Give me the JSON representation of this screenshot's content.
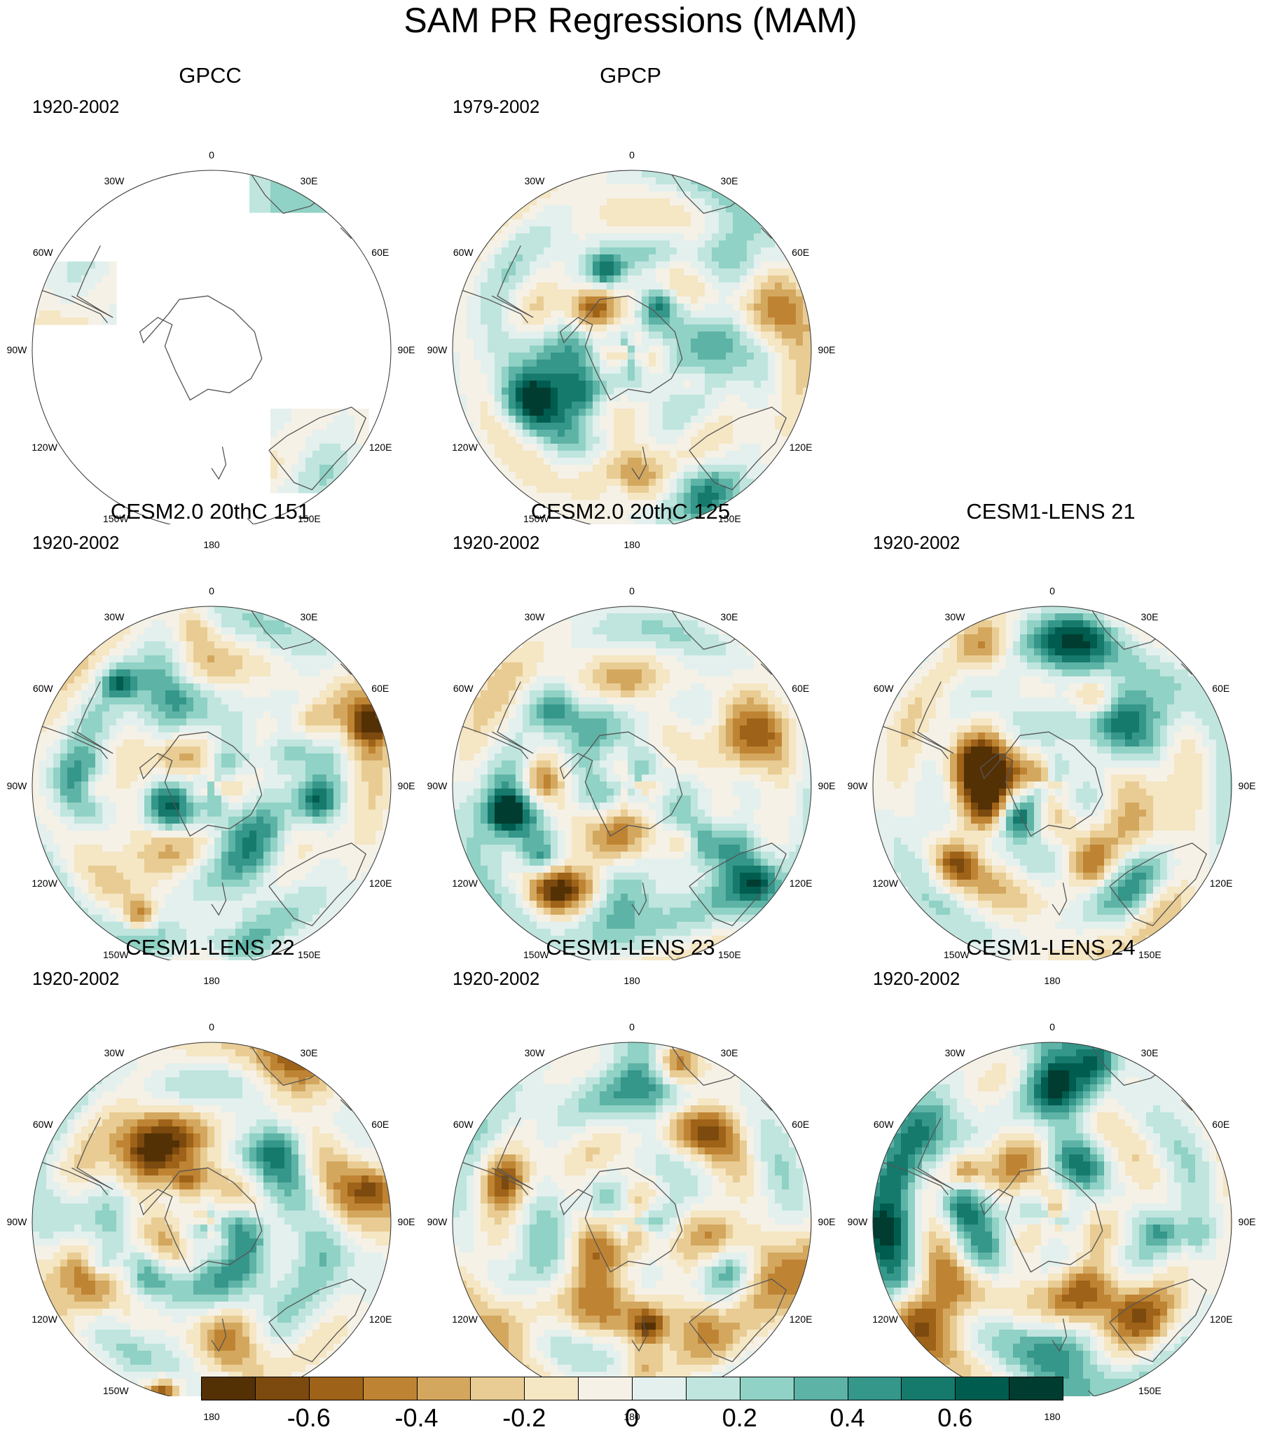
{
  "title": "SAM PR Regressions (MAM)",
  "lon_labels": [
    "0",
    "30E",
    "60E",
    "90E",
    "120E",
    "150E",
    "180",
    "150W",
    "120W",
    "90W",
    "60W",
    "30W"
  ],
  "panels": [
    {
      "title": "GPCC",
      "period": "1920-2002",
      "coverage": "land-only",
      "seed": 1
    },
    {
      "title": "GPCP",
      "period": "1979-2002",
      "coverage": "full",
      "seed": 2
    },
    {
      "title": "CESM2.0 20thC 151",
      "period": "1920-2002",
      "coverage": "full",
      "seed": 3
    },
    {
      "title": "CESM2.0 20thC 125",
      "period": "1920-2002",
      "coverage": "full",
      "seed": 4
    },
    {
      "title": "CESM1-LENS 21",
      "period": "1920-2002",
      "coverage": "full",
      "seed": 5
    },
    {
      "title": "CESM1-LENS 22",
      "period": "1920-2002",
      "coverage": "full",
      "seed": 6
    },
    {
      "title": "CESM1-LENS 23",
      "period": "1920-2002",
      "coverage": "full",
      "seed": 7
    },
    {
      "title": "CESM1-LENS 24",
      "period": "1920-2002",
      "coverage": "full",
      "seed": 8
    }
  ],
  "colorbar": {
    "colors": [
      "#543005",
      "#7c4a0e",
      "#9e6218",
      "#bf8433",
      "#d4a75f",
      "#e8cc93",
      "#f5e6c4",
      "#f5f1e6",
      "#e3f0ee",
      "#bfe5de",
      "#90d2c5",
      "#5db3a6",
      "#35968a",
      "#157a6c",
      "#005c4e",
      "#003c30"
    ],
    "labels": [
      "-0.6",
      "-0.4",
      "-0.2",
      "0",
      "0.2",
      "0.4",
      "0.6"
    ]
  }
}
